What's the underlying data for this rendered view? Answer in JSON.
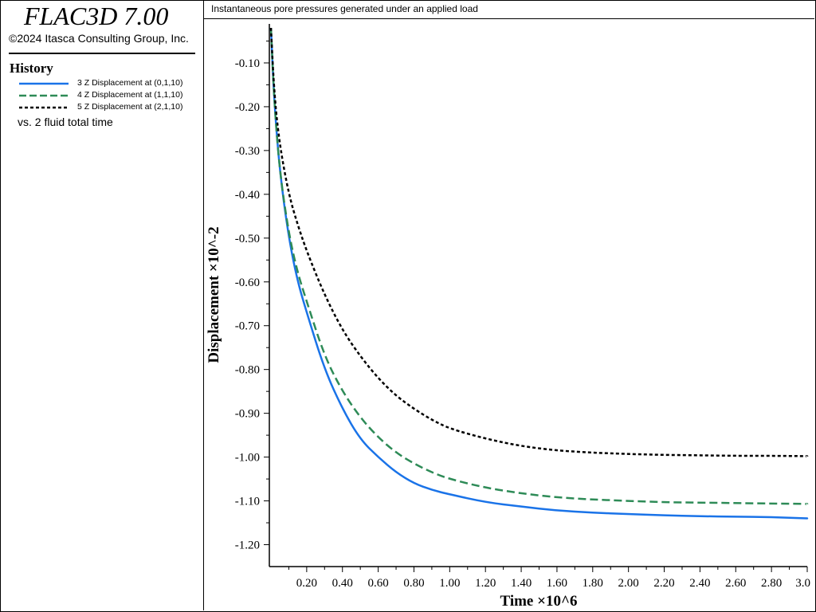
{
  "app": {
    "title": "FLAC3D 7.00",
    "copyright": "©2024 Itasca Consulting Group, Inc."
  },
  "legend": {
    "heading": "History",
    "items": [
      {
        "label": "3 Z Displacement at (0,1,10)",
        "color": "#1a73e8",
        "style": "solid"
      },
      {
        "label": "4 Z Displacement at (1,1,10)",
        "color": "#2e8b57",
        "style": "dashed"
      },
      {
        "label": "5 Z Displacement at (2,1,10)",
        "color": "#000000",
        "style": "dotted"
      }
    ],
    "vs_label": "vs. 2 fluid total time"
  },
  "plot": {
    "caption": "Instantaneous pore pressures generated under an applied load"
  },
  "chart_data": {
    "type": "line",
    "title": "Instantaneous pore pressures generated under an applied load",
    "xlabel": "Time ×10^6",
    "ylabel": "Displacement ×10^-2",
    "xlim": [
      0.0,
      3.0
    ],
    "ylim": [
      -1.25,
      0.0
    ],
    "x_ticks": [
      0.2,
      0.4,
      0.6,
      0.8,
      1.0,
      1.2,
      1.4,
      1.6,
      1.8,
      2.0,
      2.2,
      2.4,
      2.6,
      2.8,
      3.0
    ],
    "x_tick_labels": [
      "0.20",
      "0.40",
      "0.60",
      "0.80",
      "1.00",
      "1.20",
      "1.40",
      "1.60",
      "1.80",
      "2.00",
      "2.20",
      "2.40",
      "2.60",
      "2.80",
      "3.0"
    ],
    "y_ticks": [
      -0.1,
      -0.2,
      -0.3,
      -0.4,
      -0.5,
      -0.6,
      -0.7,
      -0.8,
      -0.9,
      -1.0,
      -1.1,
      -1.2
    ],
    "y_tick_labels": [
      "-0.10",
      "-0.20",
      "-0.30",
      "-0.40",
      "-0.50",
      "-0.60",
      "-0.70",
      "-0.80",
      "-0.90",
      "-1.00",
      "-1.10",
      "-1.20"
    ],
    "grid": false,
    "series": [
      {
        "name": "3 Z Displacement at (0,1,10)",
        "color": "#1a73e8",
        "style": "solid",
        "x": [
          0.0,
          0.02,
          0.05,
          0.1,
          0.15,
          0.2,
          0.3,
          0.4,
          0.5,
          0.6,
          0.7,
          0.8,
          0.9,
          1.0,
          1.2,
          1.4,
          1.6,
          1.8,
          2.0,
          2.2,
          2.4,
          2.6,
          2.8,
          3.0
        ],
        "y": [
          -0.02,
          -0.2,
          -0.35,
          -0.5,
          -0.6,
          -0.67,
          -0.8,
          -0.89,
          -0.96,
          -1.0,
          -1.035,
          -1.06,
          -1.075,
          -1.085,
          -1.103,
          -1.113,
          -1.122,
          -1.127,
          -1.13,
          -1.133,
          -1.135,
          -1.136,
          -1.137,
          -1.14
        ]
      },
      {
        "name": "4 Z Displacement at (1,1,10)",
        "color": "#2e8b57",
        "style": "dashed",
        "x": [
          0.0,
          0.02,
          0.05,
          0.1,
          0.15,
          0.2,
          0.3,
          0.4,
          0.5,
          0.6,
          0.7,
          0.8,
          0.9,
          1.0,
          1.2,
          1.4,
          1.6,
          1.8,
          2.0,
          2.2,
          2.4,
          2.6,
          2.8,
          3.0
        ],
        "y": [
          -0.02,
          -0.2,
          -0.35,
          -0.49,
          -0.58,
          -0.645,
          -0.77,
          -0.85,
          -0.91,
          -0.955,
          -0.99,
          -1.015,
          -1.035,
          -1.05,
          -1.07,
          -1.083,
          -1.092,
          -1.097,
          -1.1,
          -1.103,
          -1.104,
          -1.105,
          -1.106,
          -1.107
        ]
      },
      {
        "name": "5 Z Displacement at (2,1,10)",
        "color": "#000000",
        "style": "dotted",
        "x": [
          0.0,
          0.02,
          0.05,
          0.1,
          0.15,
          0.2,
          0.3,
          0.4,
          0.5,
          0.6,
          0.7,
          0.8,
          0.9,
          1.0,
          1.2,
          1.4,
          1.6,
          1.8,
          2.0,
          2.2,
          2.4,
          2.6,
          2.8,
          3.0
        ],
        "y": [
          -0.02,
          -0.18,
          -0.29,
          -0.4,
          -0.47,
          -0.53,
          -0.63,
          -0.71,
          -0.77,
          -0.82,
          -0.86,
          -0.89,
          -0.915,
          -0.935,
          -0.958,
          -0.975,
          -0.985,
          -0.99,
          -0.993,
          -0.995,
          -0.996,
          -0.997,
          -0.997,
          -0.998
        ]
      }
    ]
  }
}
